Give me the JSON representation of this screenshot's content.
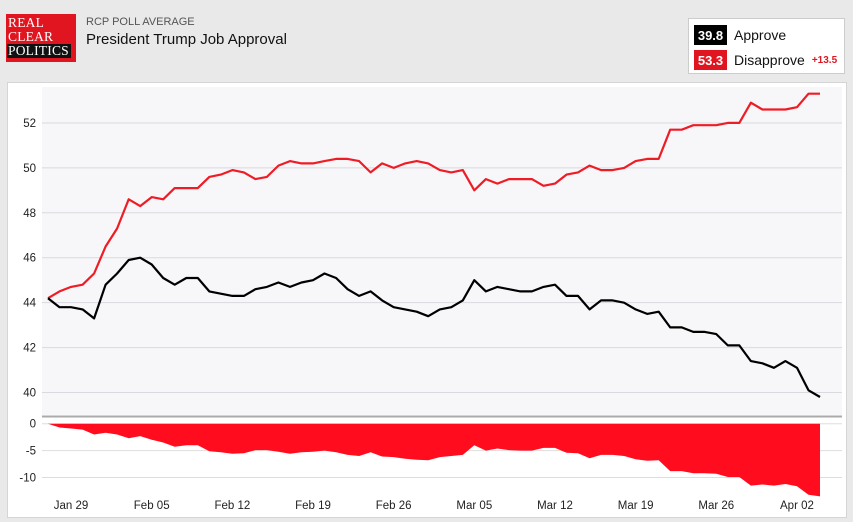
{
  "logo": {
    "line1": "REAL",
    "line2": "CLEAR",
    "line3": "POLITICS"
  },
  "header": {
    "kicker": "RCP POLL AVERAGE",
    "title": "President Trump Job Approval"
  },
  "legend": {
    "approve": {
      "value": "39.8",
      "label": "Approve",
      "color": "#000000"
    },
    "disapprove": {
      "value": "53.3",
      "label": "Disapprove",
      "color": "#e01520"
    },
    "spread": "+13.5"
  },
  "colors": {
    "approve": "#000000",
    "disapprove": "#ee1c25",
    "spread_area": "#ff0d1f"
  },
  "chart_data": [
    {
      "type": "line",
      "ylim": [
        39,
        53.6
      ],
      "yticks": [
        40,
        42,
        44,
        46,
        48,
        50,
        52
      ],
      "grid": true,
      "series": [
        {
          "name": "Approve",
          "values": [
            44.2,
            43.8,
            43.8,
            43.7,
            43.3,
            44.8,
            45.3,
            45.9,
            46.0,
            45.7,
            45.1,
            44.8,
            45.1,
            45.1,
            44.5,
            44.4,
            44.3,
            44.3,
            44.6,
            44.7,
            44.9,
            44.7,
            44.9,
            45.0,
            45.3,
            45.1,
            44.6,
            44.3,
            44.5,
            44.1,
            43.8,
            43.7,
            43.6,
            43.4,
            43.7,
            43.8,
            44.1,
            45.0,
            44.5,
            44.7,
            44.6,
            44.5,
            44.5,
            44.7,
            44.8,
            44.3,
            44.3,
            43.7,
            44.1,
            44.1,
            44.0,
            43.7,
            43.5,
            43.6,
            42.9,
            42.9,
            42.7,
            42.7,
            42.6,
            42.1,
            42.1,
            41.4,
            41.3,
            41.1,
            41.4,
            41.1,
            40.1,
            39.8
          ]
        },
        {
          "name": "Disapprove",
          "values": [
            44.2,
            44.5,
            44.7,
            44.8,
            45.3,
            46.5,
            47.3,
            48.6,
            48.3,
            48.7,
            48.6,
            49.1,
            49.1,
            49.1,
            49.6,
            49.7,
            49.9,
            49.8,
            49.5,
            49.6,
            50.1,
            50.3,
            50.2,
            50.2,
            50.3,
            50.4,
            50.4,
            50.3,
            49.8,
            50.2,
            50.0,
            50.2,
            50.3,
            50.2,
            49.9,
            49.8,
            49.9,
            49.0,
            49.5,
            49.3,
            49.5,
            49.5,
            49.5,
            49.2,
            49.3,
            49.7,
            49.8,
            50.1,
            49.9,
            49.9,
            50.0,
            50.3,
            50.4,
            50.4,
            51.7,
            51.7,
            51.9,
            51.9,
            51.9,
            52.0,
            52.0,
            52.9,
            52.6,
            52.6,
            52.6,
            52.7,
            53.3,
            53.3
          ]
        }
      ]
    },
    {
      "type": "area",
      "ylim": [
        -12.5,
        0.5
      ],
      "yticks": [
        0,
        -5,
        -10
      ],
      "series": [
        {
          "name": "Spread",
          "values": [
            0.0,
            -0.7,
            -0.9,
            -1.1,
            -2.0,
            -1.7,
            -2.0,
            -2.7,
            -2.3,
            -3.0,
            -3.5,
            -4.3,
            -4.0,
            -4.0,
            -5.1,
            -5.3,
            -5.6,
            -5.5,
            -4.9,
            -4.9,
            -5.2,
            -5.6,
            -5.3,
            -5.2,
            -5.0,
            -5.3,
            -5.8,
            -6.0,
            -5.3,
            -6.1,
            -6.2,
            -6.5,
            -6.7,
            -6.8,
            -6.2,
            -6.0,
            -5.8,
            -4.0,
            -5.0,
            -4.6,
            -4.9,
            -5.0,
            -5.0,
            -4.5,
            -4.5,
            -5.4,
            -5.5,
            -6.4,
            -5.8,
            -5.8,
            -6.0,
            -6.6,
            -6.9,
            -6.8,
            -8.8,
            -8.8,
            -9.2,
            -9.2,
            -9.3,
            -9.9,
            -9.9,
            -11.5,
            -11.3,
            -11.5,
            -11.2,
            -11.6,
            -13.2,
            -13.5
          ]
        }
      ]
    }
  ],
  "x_labels": [
    {
      "label": "Jan 29",
      "index": 2
    },
    {
      "label": "Feb 05",
      "index": 9
    },
    {
      "label": "Feb 12",
      "index": 16
    },
    {
      "label": "Feb 19",
      "index": 23
    },
    {
      "label": "Feb 26",
      "index": 30
    },
    {
      "label": "Mar 05",
      "index": 37
    },
    {
      "label": "Mar 12",
      "index": 44
    },
    {
      "label": "Mar 19",
      "index": 51
    },
    {
      "label": "Mar 26",
      "index": 58
    },
    {
      "label": "Apr 02",
      "index": 65
    }
  ]
}
